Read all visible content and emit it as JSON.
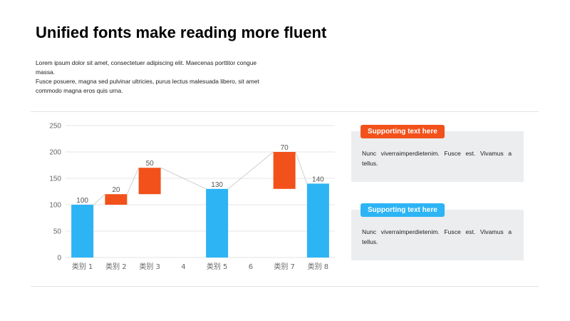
{
  "title": "Unified fonts make reading more fluent",
  "body": [
    "Lorem ipsum dolor sit amet, consectetuer adipiscing elit. Maecenas porttitor congue massa.",
    "Fusce posuere, magna sed pulvinar ultricies, purus lectus malesuada libero, sit amet commodo magna eros quis urna."
  ],
  "cards": [
    {
      "badge": "Supporting text here",
      "text": "Nunc viverraimperdietenim. Fusce est. Vivamus a tellus.",
      "color": "#f2511b"
    },
    {
      "badge": "Supporting text here",
      "text": "Nunc viverraimperdietenim. Fusce est. Vivamus a tellus.",
      "color": "#2cb4f5"
    }
  ],
  "chart_data": {
    "type": "bar",
    "subtype": "waterfall",
    "categories": [
      "类别 1",
      "类别 2",
      "类别 3",
      "4",
      "类别 5",
      "6",
      "类别 7",
      "类别 8"
    ],
    "bars": [
      {
        "category": "类别 1",
        "kind": "total",
        "start": 0,
        "end": 100,
        "label": "100"
      },
      {
        "category": "类别 2",
        "kind": "increase",
        "start": 100,
        "end": 120,
        "label": "20"
      },
      {
        "category": "类别 3",
        "kind": "increase",
        "start": 120,
        "end": 170,
        "label": "50"
      },
      {
        "category": "类别 5",
        "kind": "total",
        "start": 0,
        "end": 130,
        "label": "130"
      },
      {
        "category": "类别 7",
        "kind": "increase",
        "start": 130,
        "end": 200,
        "label": "70"
      },
      {
        "category": "类别 8",
        "kind": "total",
        "start": 0,
        "end": 140,
        "label": "140"
      }
    ],
    "yticks": [
      "0",
      "50",
      "100",
      "150",
      "200",
      "250"
    ],
    "ylim": [
      0,
      250
    ],
    "grid": true,
    "colors": {
      "total": "#2cb4f5",
      "increase": "#f2511b",
      "axis_text": "#666666",
      "grid": "#e6e6e6",
      "connector": "#d0d0d0"
    }
  }
}
